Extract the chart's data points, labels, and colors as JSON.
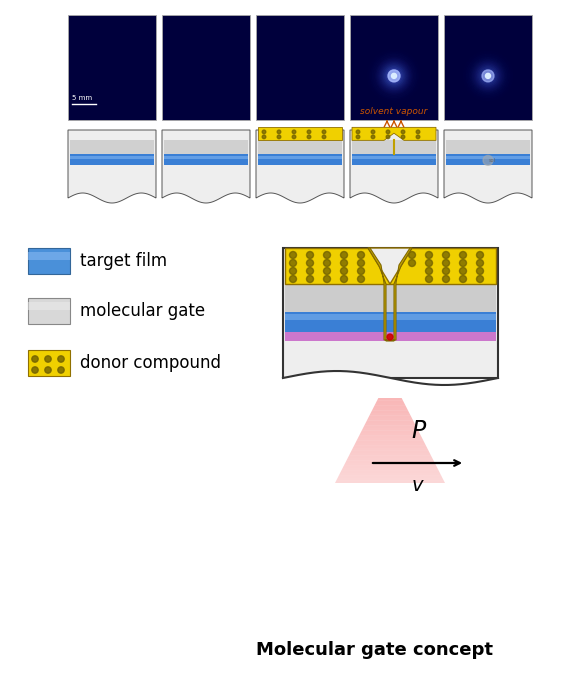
{
  "title": "Molecular gate concept",
  "legend_items": [
    {
      "label": "target film",
      "color_main": "#4a90d9",
      "color_light": "#80b4f0",
      "type": "blue"
    },
    {
      "label": "molecular gate",
      "color_main": "#d8d8d8",
      "color_light": "#ececec",
      "type": "gray"
    },
    {
      "label": "donor compound",
      "color_main": "#f0d000",
      "color_dot": "#706000",
      "type": "yellow"
    }
  ],
  "solvent_vapour_text": "solvent vapour",
  "v_label": "v",
  "P_label": "P",
  "scale_bar_text": "5 mm",
  "bg_color": "#ffffff",
  "fluor_panels": [
    {
      "glow": false
    },
    {
      "glow": false
    },
    {
      "glow": false
    },
    {
      "glow": true,
      "glow_strength": 0.85
    },
    {
      "glow": true,
      "glow_strength": 0.65
    }
  ],
  "cs_panels": [
    {
      "donor": false,
      "notch": false,
      "dot": false
    },
    {
      "donor": false,
      "notch": false,
      "dot": false
    },
    {
      "donor": true,
      "notch": false,
      "dot": false
    },
    {
      "donor": true,
      "notch": true,
      "dot": false
    },
    {
      "donor": false,
      "notch": false,
      "dot": true
    }
  ]
}
